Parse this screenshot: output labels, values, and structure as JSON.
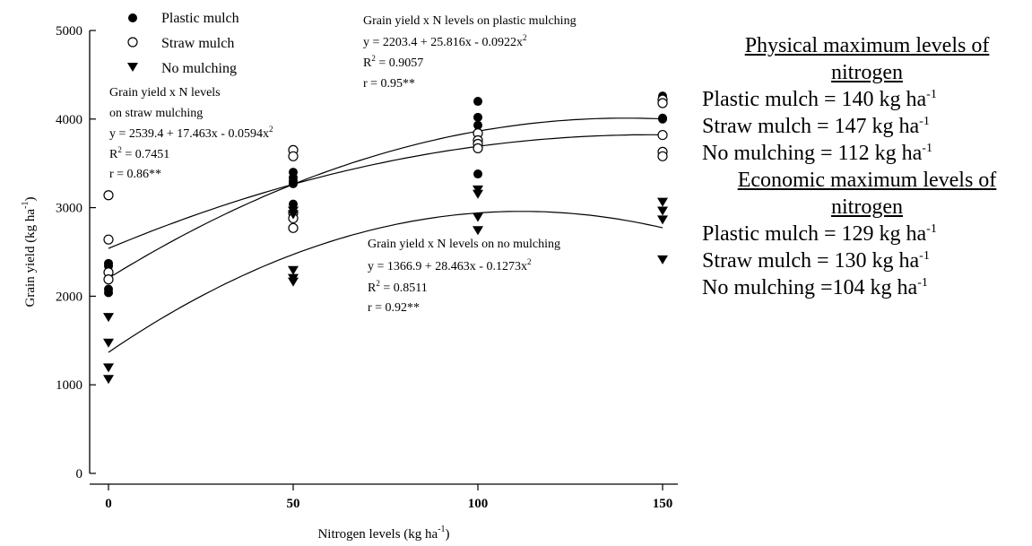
{
  "chart_data": {
    "type": "scatter",
    "xlabel": "Nitrogen levels (kg ha",
    "xlabel_sup": "-1",
    "xlabel_tail": ")",
    "ylabel": "Grain yield (kg ha",
    "ylabel_sup": "-1",
    "ylabel_tail": ")",
    "xlim": [
      -5,
      155
    ],
    "ylim": [
      0,
      5000
    ],
    "x_ticks": [
      0,
      50,
      100,
      150
    ],
    "y_ticks": [
      0,
      1000,
      2000,
      3000,
      4000,
      5000
    ],
    "grid": false,
    "legend_position": "top-left",
    "series": [
      {
        "name": "Plastic mulch",
        "marker": "filled-circle",
        "points": [
          [
            0,
            2370
          ],
          [
            0,
            2340
          ],
          [
            0,
            2080
          ],
          [
            0,
            2040
          ],
          [
            50,
            3400
          ],
          [
            50,
            3340
          ],
          [
            50,
            3300
          ],
          [
            50,
            3270
          ],
          [
            50,
            3040
          ],
          [
            50,
            2950
          ],
          [
            100,
            4200
          ],
          [
            100,
            4020
          ],
          [
            100,
            3930
          ],
          [
            100,
            3380
          ],
          [
            150,
            4260
          ],
          [
            150,
            4180
          ],
          [
            150,
            4010
          ],
          [
            150,
            4000
          ]
        ],
        "fit": {
          "a": 2203.4,
          "b": 25.816,
          "c": -0.0922
        }
      },
      {
        "name": "Straw mulch",
        "marker": "open-circle",
        "points": [
          [
            0,
            3140
          ],
          [
            0,
            2640
          ],
          [
            0,
            2270
          ],
          [
            0,
            2190
          ],
          [
            50,
            3650
          ],
          [
            50,
            3580
          ],
          [
            50,
            2940
          ],
          [
            50,
            2880
          ],
          [
            50,
            2770
          ],
          [
            100,
            3840
          ],
          [
            100,
            3760
          ],
          [
            100,
            3720
          ],
          [
            100,
            3670
          ],
          [
            150,
            4220
          ],
          [
            150,
            4180
          ],
          [
            150,
            3820
          ],
          [
            150,
            3630
          ],
          [
            150,
            3580
          ]
        ],
        "fit": {
          "a": 2539.4,
          "b": 17.463,
          "c": -0.0594
        }
      },
      {
        "name": "No mulching",
        "marker": "filled-triangle-down",
        "points": [
          [
            0,
            1760
          ],
          [
            0,
            1470
          ],
          [
            0,
            1190
          ],
          [
            0,
            1060
          ],
          [
            50,
            2960
          ],
          [
            50,
            2920
          ],
          [
            50,
            2290
          ],
          [
            50,
            2200
          ],
          [
            50,
            2160
          ],
          [
            100,
            3200
          ],
          [
            100,
            3150
          ],
          [
            100,
            2890
          ],
          [
            100,
            2740
          ],
          [
            150,
            3060
          ],
          [
            150,
            2960
          ],
          [
            150,
            2860
          ],
          [
            150,
            2410
          ]
        ],
        "fit": {
          "a": 1366.9,
          "b": 28.463,
          "c": -0.1273
        }
      }
    ],
    "annotations": {
      "plastic": {
        "lines": [
          "Grain yield x N levels on plastic mulching",
          "y = 2203.4 + 25.816x - 0.0922x",
          "R",
          "r = 0.95**"
        ],
        "sq": "2",
        "r2_eq": " = 0.9057"
      },
      "straw": {
        "lines": [
          "Grain yield x N levels",
          "on straw mulching",
          "y = 2539.4 + 17.463x - 0.0594x",
          "R",
          "r = 0.86**"
        ],
        "sq": "2",
        "r2_eq": " = 0.7451"
      },
      "nomulch": {
        "lines": [
          "Grain yield x N levels on no mulching",
          "y = 1366.9 + 28.463x - 0.1273x",
          "R",
          "r = 0.92**"
        ],
        "sq": "2",
        "r2_eq": " = 0.8511"
      }
    }
  },
  "side_panel": {
    "physical_header": "Physical maximum levels of",
    "physical_header_2": "nitrogen",
    "physical": [
      {
        "text": "Plastic mulch = 140 kg ha",
        "sup": "-1"
      },
      {
        "text": "Straw mulch = 147 kg ha",
        "sup": "-1"
      },
      {
        "text": "No mulching = 112 kg ha",
        "sup": "-1"
      }
    ],
    "economic_header": "Economic maximum levels of",
    "economic_header_2": "nitrogen",
    "economic": [
      {
        "text": "Plastic mulch = 129 kg ha",
        "sup": "-1"
      },
      {
        "text": "Straw mulch = 130 kg ha",
        "sup": "-1"
      },
      {
        "text": "No mulching =104 kg ha",
        "sup": "-1"
      }
    ]
  }
}
